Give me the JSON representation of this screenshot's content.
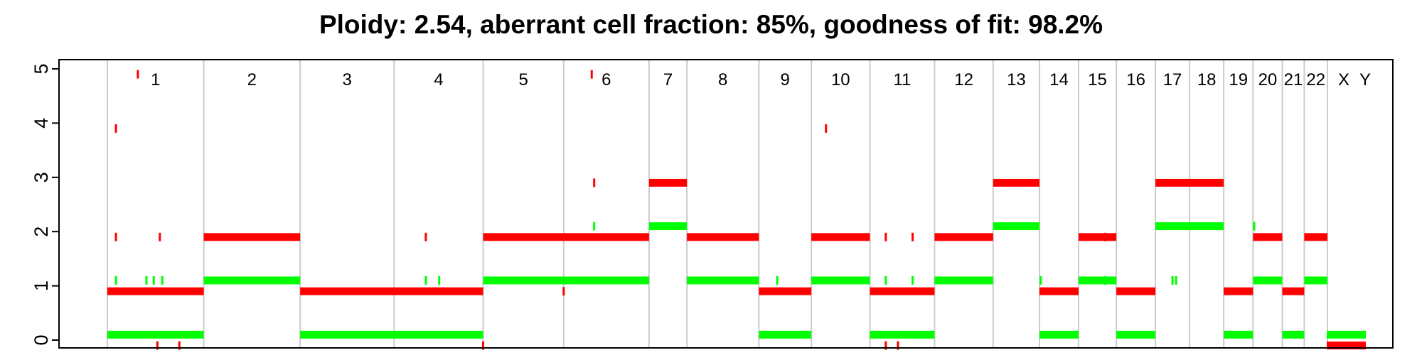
{
  "chart_data": {
    "type": "segments",
    "title": "Ploidy: 2.54, aberrant cell fraction: 85%, goodness of fit: 98.2%",
    "ylim": [
      0,
      5
    ],
    "y_ticks": [
      "0",
      "1",
      "2",
      "3",
      "4",
      "5"
    ],
    "colors": {
      "major": "#ff0000",
      "minor": "#00ff00",
      "separator": "#cccccc"
    },
    "grid": false,
    "chromosomes": [
      {
        "label": "1",
        "span": [
          0.0,
          0.079
        ]
      },
      {
        "label": "2",
        "span": [
          0.079,
          0.158
        ]
      },
      {
        "label": "3",
        "span": [
          0.158,
          0.235
        ]
      },
      {
        "label": "4",
        "span": [
          0.235,
          0.308
        ]
      },
      {
        "label": "5",
        "span": [
          0.308,
          0.374
        ]
      },
      {
        "label": "6",
        "span": [
          0.374,
          0.444
        ]
      },
      {
        "label": "7",
        "span": [
          0.444,
          0.475
        ]
      },
      {
        "label": "8",
        "span": [
          0.475,
          0.534
        ]
      },
      {
        "label": "9",
        "span": [
          0.534,
          0.577
        ]
      },
      {
        "label": "10",
        "span": [
          0.577,
          0.625
        ]
      },
      {
        "label": "11",
        "span": [
          0.625,
          0.678
        ]
      },
      {
        "label": "12",
        "span": [
          0.678,
          0.726
        ]
      },
      {
        "label": "13",
        "span": [
          0.726,
          0.764
        ]
      },
      {
        "label": "14",
        "span": [
          0.764,
          0.796
        ]
      },
      {
        "label": "15",
        "span": [
          0.796,
          0.827
        ]
      },
      {
        "label": "16",
        "span": [
          0.827,
          0.859
        ]
      },
      {
        "label": "17",
        "span": [
          0.859,
          0.887
        ]
      },
      {
        "label": "18",
        "span": [
          0.887,
          0.915
        ]
      },
      {
        "label": "19",
        "span": [
          0.915,
          0.939
        ]
      },
      {
        "label": "20",
        "span": [
          0.939,
          0.963
        ]
      },
      {
        "label": "21",
        "span": [
          0.963,
          0.981
        ]
      },
      {
        "label": "22",
        "span": [
          0.981,
          1.0
        ]
      },
      {
        "label": "X",
        "span": [
          1.0,
          1.0
        ]
      },
      {
        "label": "Y",
        "span": [
          1.0,
          1.0
        ]
      }
    ],
    "segments": {
      "major": [
        {
          "x": [
            0.0,
            0.079
          ],
          "y": 0.9
        },
        {
          "x": [
            0.079,
            0.158
          ],
          "y": 1.9
        },
        {
          "x": [
            0.158,
            0.308
          ],
          "y": 0.9
        },
        {
          "x": [
            0.308,
            0.444
          ],
          "y": 1.9
        },
        {
          "x": [
            0.444,
            0.475
          ],
          "y": 2.9
        },
        {
          "x": [
            0.475,
            0.534
          ],
          "y": 1.9
        },
        {
          "x": [
            0.534,
            0.577
          ],
          "y": 0.9
        },
        {
          "x": [
            0.577,
            0.625
          ],
          "y": 1.9
        },
        {
          "x": [
            0.625,
            0.678
          ],
          "y": 0.9
        },
        {
          "x": [
            0.678,
            0.726
          ],
          "y": 1.9
        },
        {
          "x": [
            0.726,
            0.764
          ],
          "y": 2.9
        },
        {
          "x": [
            0.764,
            0.796
          ],
          "y": 0.9
        },
        {
          "x": [
            0.796,
            0.827
          ],
          "y": 1.9
        },
        {
          "x": [
            0.827,
            0.859
          ],
          "y": 0.9
        },
        {
          "x": [
            0.859,
            0.915
          ],
          "y": 2.9
        },
        {
          "x": [
            0.915,
            0.939
          ],
          "y": 0.9
        },
        {
          "x": [
            0.939,
            0.963
          ],
          "y": 1.9
        },
        {
          "x": [
            0.963,
            0.981
          ],
          "y": 0.9
        },
        {
          "x": [
            0.981,
            1.0
          ],
          "y": 1.9
        },
        {
          "x": [
            1.0,
            1.0
          ],
          "y": -0.1
        }
      ],
      "minor": [
        {
          "x": [
            0.0,
            0.079
          ],
          "y": 0.1
        },
        {
          "x": [
            0.079,
            0.158
          ],
          "y": 1.1
        },
        {
          "x": [
            0.158,
            0.308
          ],
          "y": 0.1
        },
        {
          "x": [
            0.308,
            0.444
          ],
          "y": 1.1
        },
        {
          "x": [
            0.444,
            0.475
          ],
          "y": 2.1
        },
        {
          "x": [
            0.475,
            0.534
          ],
          "y": 1.1
        },
        {
          "x": [
            0.534,
            0.577
          ],
          "y": 0.1
        },
        {
          "x": [
            0.577,
            0.625
          ],
          "y": 1.1
        },
        {
          "x": [
            0.625,
            0.678
          ],
          "y": 0.1
        },
        {
          "x": [
            0.678,
            0.726
          ],
          "y": 1.1
        },
        {
          "x": [
            0.726,
            0.764
          ],
          "y": 2.1
        },
        {
          "x": [
            0.764,
            0.796
          ],
          "y": 0.1
        },
        {
          "x": [
            0.796,
            0.827
          ],
          "y": 1.1
        },
        {
          "x": [
            0.827,
            0.859
          ],
          "y": 0.1
        },
        {
          "x": [
            0.859,
            0.915
          ],
          "y": 2.1
        },
        {
          "x": [
            0.915,
            0.939
          ],
          "y": 0.1
        },
        {
          "x": [
            0.939,
            0.963
          ],
          "y": 1.1
        },
        {
          "x": [
            0.963,
            0.981
          ],
          "y": 0.1
        },
        {
          "x": [
            0.981,
            1.0
          ],
          "y": 1.1
        },
        {
          "x": [
            1.0,
            1.0
          ],
          "y": 0.1
        }
      ]
    },
    "ticks": {
      "major": [
        {
          "x": 0.025,
          "y": 4.9
        },
        {
          "x": 0.007,
          "y": 3.9
        },
        {
          "x": 0.007,
          "y": 1.9
        },
        {
          "x": 0.043,
          "y": 1.9
        },
        {
          "x": 0.041,
          "y": -0.1
        },
        {
          "x": 0.059,
          "y": -0.1
        },
        {
          "x": 0.261,
          "y": 1.9
        },
        {
          "x": 0.308,
          "y": -0.1
        },
        {
          "x": 0.397,
          "y": 4.9
        },
        {
          "x": 0.399,
          "y": 2.9
        },
        {
          "x": 0.374,
          "y": 0.9
        },
        {
          "x": 0.638,
          "y": 1.9
        },
        {
          "x": 0.66,
          "y": 1.9
        },
        {
          "x": 0.638,
          "y": -0.1
        },
        {
          "x": 0.648,
          "y": -0.1
        },
        {
          "x": 0.818,
          "y": 1.9
        },
        {
          "x": 0.589,
          "y": 3.9
        }
      ],
      "minor": [
        {
          "x": 0.007,
          "y": 1.1
        },
        {
          "x": 0.032,
          "y": 1.1
        },
        {
          "x": 0.038,
          "y": 1.1
        },
        {
          "x": 0.045,
          "y": 1.1
        },
        {
          "x": 0.261,
          "y": 1.1
        },
        {
          "x": 0.272,
          "y": 1.1
        },
        {
          "x": 0.399,
          "y": 2.1
        },
        {
          "x": 0.549,
          "y": 1.1
        },
        {
          "x": 0.638,
          "y": 1.1
        },
        {
          "x": 0.66,
          "y": 1.1
        },
        {
          "x": 0.765,
          "y": 1.1
        },
        {
          "x": 0.818,
          "y": 1.1
        },
        {
          "x": 0.873,
          "y": 1.1
        },
        {
          "x": 0.876,
          "y": 1.1
        },
        {
          "x": 0.94,
          "y": 2.1
        }
      ]
    }
  }
}
